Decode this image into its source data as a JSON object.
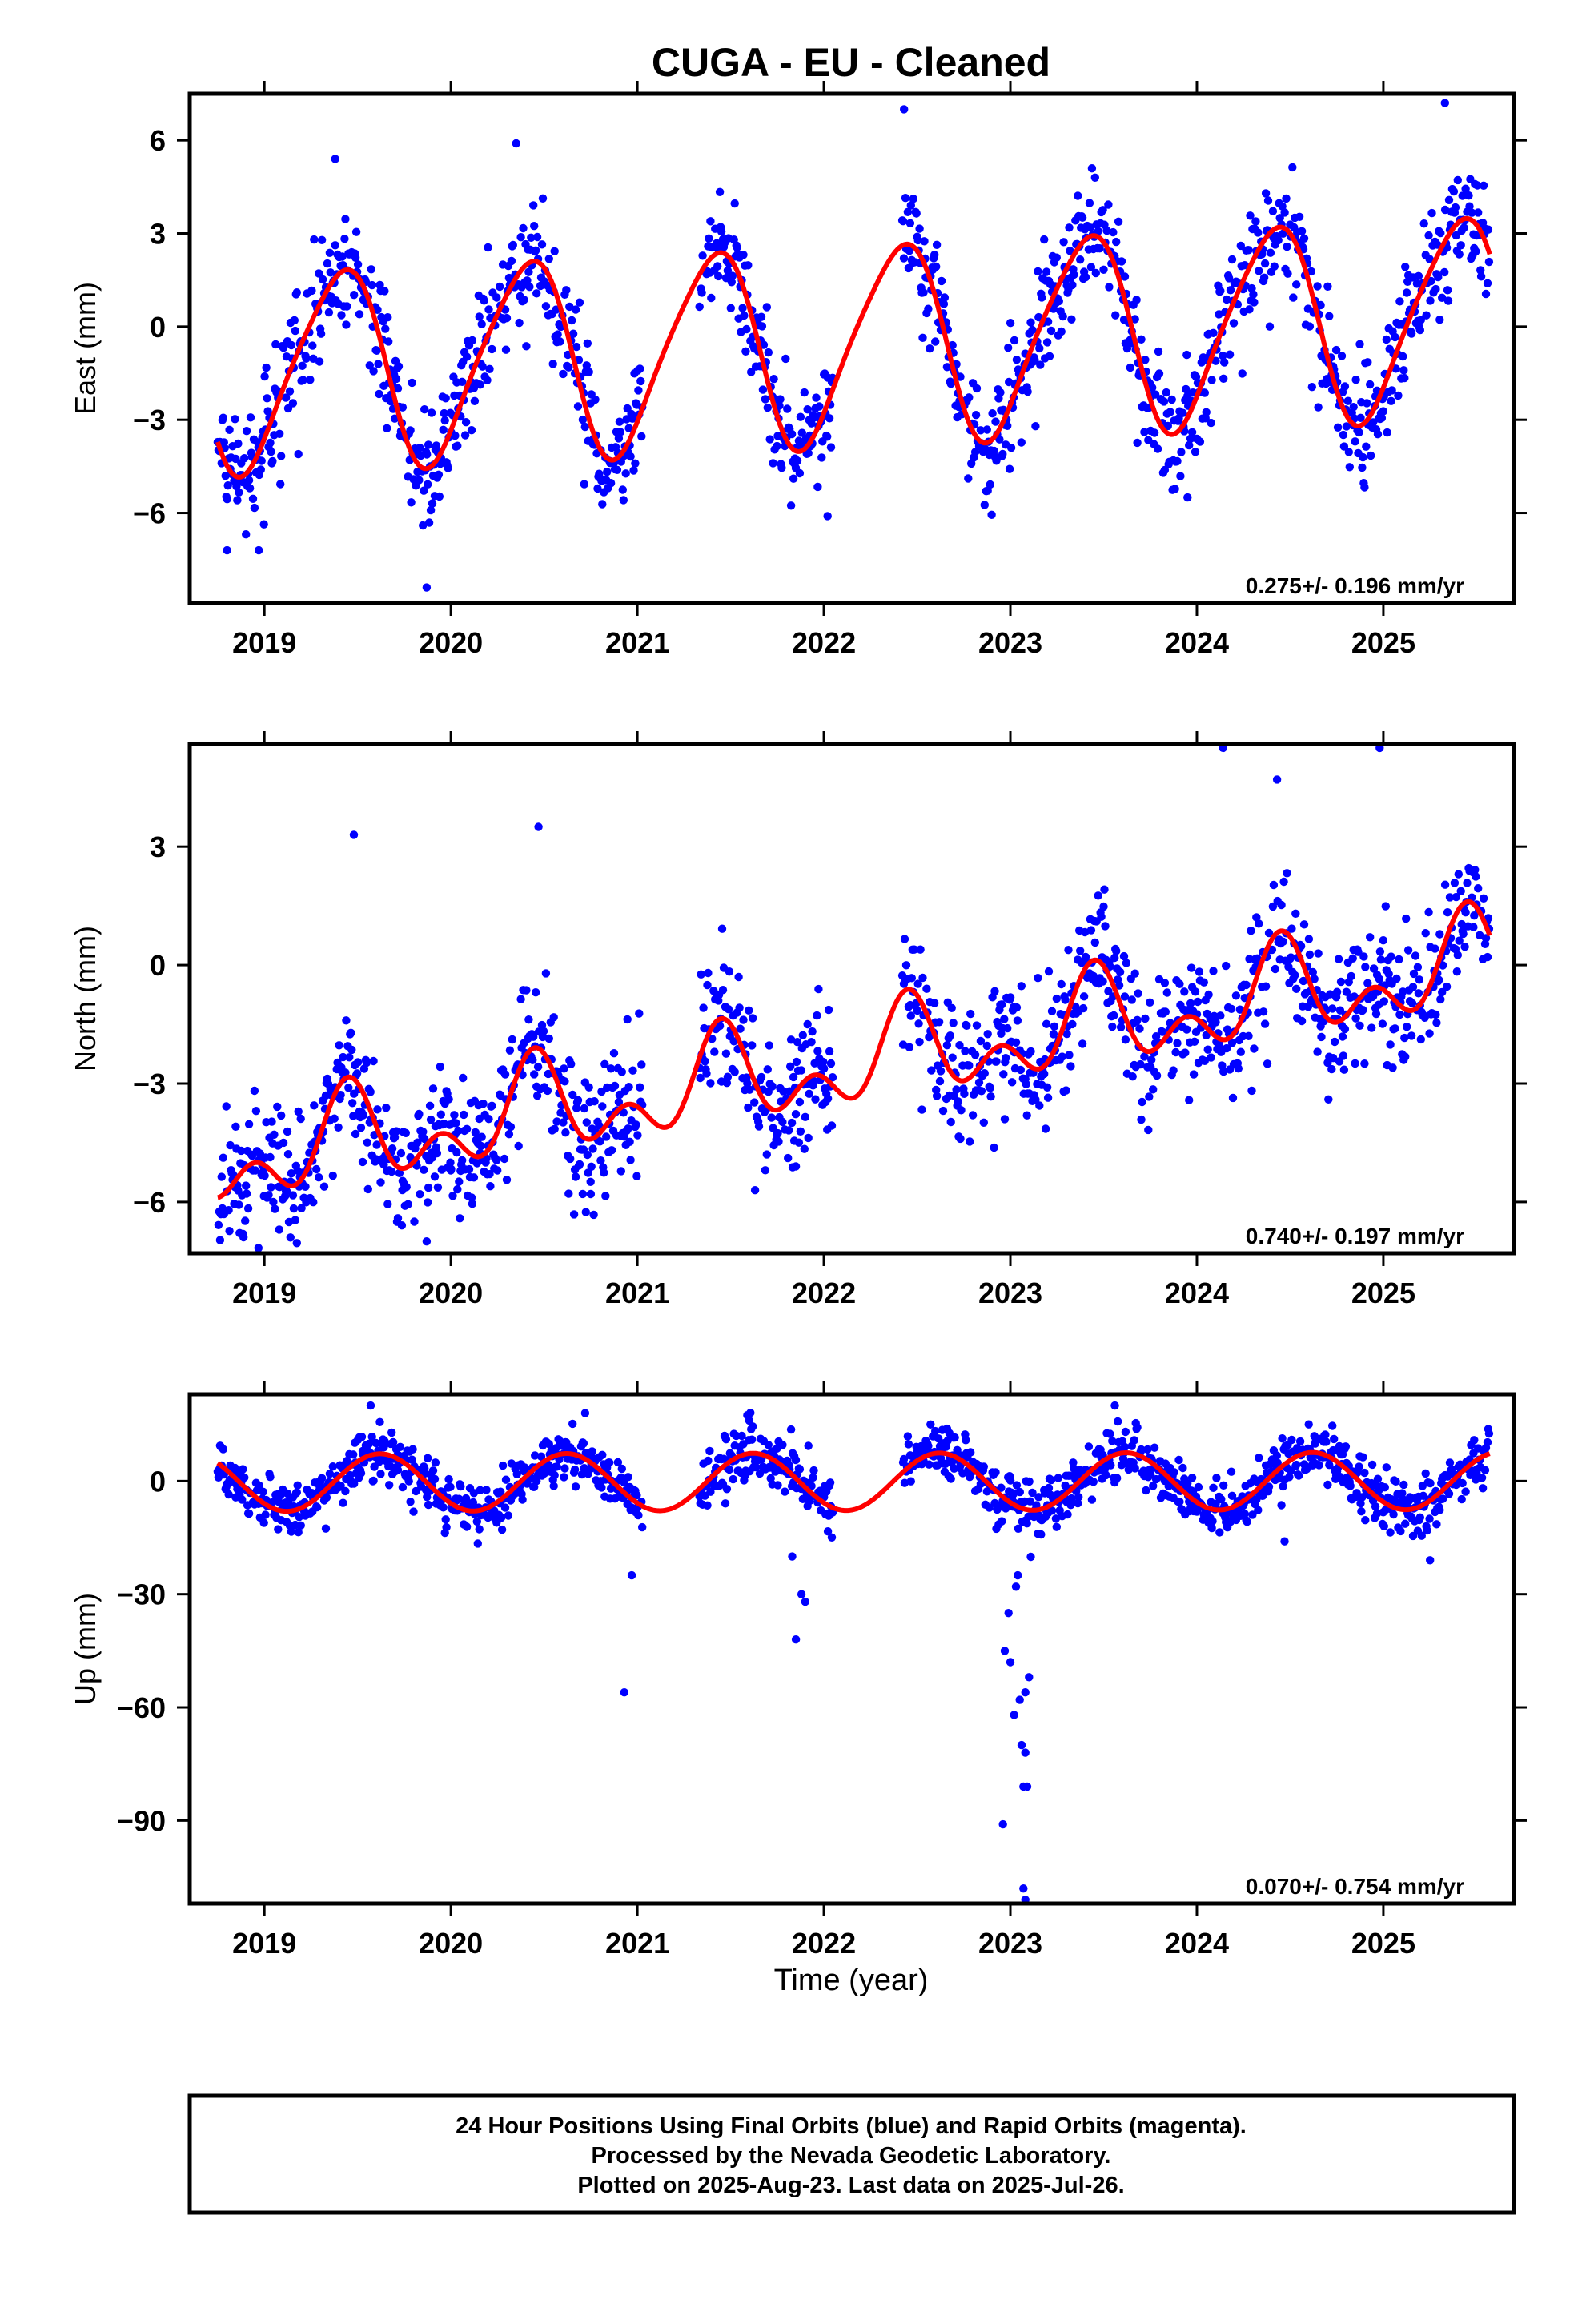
{
  "colors": {
    "final_orbits": "#0000ff",
    "rapid_orbits": "#ff00ff",
    "model_fit": "#ff0000",
    "frame": "#000000"
  },
  "chart_data": [
    {
      "type": "scatter",
      "title": "CUGA  - EU - Cleaned",
      "ylabel": "East (mm)",
      "xlabel": "",
      "xlim": [
        2018.6,
        2025.7
      ],
      "ylim": [
        -8.9,
        7.5
      ],
      "x_ticks": [
        2019,
        2020,
        2021,
        2022,
        2023,
        2024,
        2025
      ],
      "y_ticks": [
        6,
        3,
        0,
        -3,
        -6
      ],
      "rate_label": "0.275+/- 0.196 mm/yr",
      "grid": false,
      "fit": {
        "start": 2018.75,
        "end": 2025.57,
        "offset": -0.55,
        "trend": 0.275,
        "annual_amp": 3.15,
        "annual_peak": 2019.4,
        "semi_amp": 0.45,
        "semi_peak": 2019.05
      },
      "points": {
        "start": 2018.75,
        "end": 2025.57,
        "step": 0.0042,
        "scatter": 0.95,
        "gaps": [
          [
            2021.03,
            2021.33
          ],
          [
            2022.05,
            2022.42
          ]
        ],
        "outliers": [
          [
            2018.8,
            -7.2
          ],
          [
            2018.97,
            -7.2
          ],
          [
            2019.87,
            -8.4
          ],
          [
            2019.85,
            -6.4
          ],
          [
            2022.02,
            -6.1
          ],
          [
            2022.43,
            7.0
          ],
          [
            2023.95,
            -5.5
          ],
          [
            2025.33,
            7.2
          ],
          [
            2020.35,
            5.9
          ],
          [
            2019.38,
            5.4
          ]
        ]
      }
    },
    {
      "type": "scatter",
      "title": "",
      "ylabel": "North (mm)",
      "xlabel": "",
      "xlim": [
        2018.6,
        2025.7
      ],
      "ylim": [
        -7.3,
        5.6
      ],
      "x_ticks": [
        2019,
        2020,
        2021,
        2022,
        2023,
        2024,
        2025
      ],
      "y_ticks": [
        3,
        0,
        -3,
        -6
      ],
      "rate_label": "0.740+/- 0.197 mm/yr",
      "grid": false,
      "fit": {
        "start": 2018.75,
        "end": 2025.57,
        "offset": -2.45,
        "trend": 0.74,
        "annual_amp": 0.9,
        "annual_peak": 2019.45,
        "semi_amp": 0.75,
        "semi_peak": 2018.95
      },
      "points": {
        "start": 2018.75,
        "end": 2025.57,
        "step": 0.0042,
        "scatter": 0.85,
        "gaps": [
          [
            2021.03,
            2021.33
          ],
          [
            2022.05,
            2022.42
          ]
        ],
        "outliers": [
          [
            2019.08,
            -6.7
          ],
          [
            2019.14,
            -6.9
          ],
          [
            2019.87,
            -7.0
          ],
          [
            2019.74,
            -5.7
          ],
          [
            2020.0,
            -5.2
          ],
          [
            2020.75,
            -5.8
          ],
          [
            2021.85,
            -5.1
          ],
          [
            2024.14,
            5.5
          ],
          [
            2024.98,
            5.5
          ],
          [
            2024.43,
            4.7
          ],
          [
            2019.48,
            3.3
          ],
          [
            2020.47,
            3.5
          ],
          [
            2022.97,
            -3.9
          ]
        ]
      }
    },
    {
      "type": "scatter",
      "title": "",
      "ylabel": "Up (mm)",
      "xlabel": "Time (year)",
      "xlim": [
        2018.6,
        2025.7
      ],
      "ylim": [
        -112,
        23
      ],
      "x_ticks": [
        2019,
        2020,
        2021,
        2022,
        2023,
        2024,
        2025
      ],
      "y_ticks": [
        0,
        -30,
        -60,
        -90
      ],
      "rate_label": "0.070+/- 0.754 mm/yr",
      "grid": false,
      "fit": {
        "start": 2018.75,
        "end": 2025.57,
        "offset": -0.2,
        "trend": 0.07,
        "annual_amp": 7.6,
        "annual_peak": 2019.62,
        "semi_amp": 0,
        "semi_peak": 2019.0
      },
      "points": {
        "start": 2018.75,
        "end": 2025.57,
        "step": 0.0042,
        "scatter": 3.6,
        "gaps": [
          [
            2021.03,
            2021.33
          ],
          [
            2022.05,
            2022.42
          ]
        ],
        "outliers": [
          [
            2020.93,
            -56
          ],
          [
            2020.97,
            -25
          ],
          [
            2021.85,
            -42
          ],
          [
            2021.88,
            -30
          ],
          [
            2021.9,
            -32
          ],
          [
            2021.83,
            -20
          ],
          [
            2022.97,
            -45
          ],
          [
            2022.96,
            -91
          ],
          [
            2023.0,
            -48
          ],
          [
            2023.02,
            -62
          ],
          [
            2023.05,
            -58
          ],
          [
            2023.06,
            -70
          ],
          [
            2023.08,
            -72
          ],
          [
            2023.07,
            -81
          ],
          [
            2023.09,
            -81
          ],
          [
            2023.1,
            -52
          ],
          [
            2023.08,
            -56
          ],
          [
            2023.07,
            -108
          ],
          [
            2023.08,
            -111
          ],
          [
            2023.03,
            -28
          ],
          [
            2023.04,
            -25
          ],
          [
            2022.99,
            -35
          ],
          [
            2019.57,
            20
          ],
          [
            2023.56,
            20
          ],
          [
            2020.72,
            18
          ],
          [
            2021.6,
            16
          ],
          [
            2024.6,
            15
          ],
          [
            2025.25,
            -21
          ],
          [
            2024.47,
            -16
          ]
        ]
      }
    }
  ],
  "footer": {
    "line1": "24 Hour Positions Using Final Orbits (blue) and Rapid Orbits (magenta).",
    "line2": "Processed by the Nevada Geodetic Laboratory.",
    "line3": "Plotted on 2025-Aug-23. Last data on 2025-Jul-26."
  }
}
